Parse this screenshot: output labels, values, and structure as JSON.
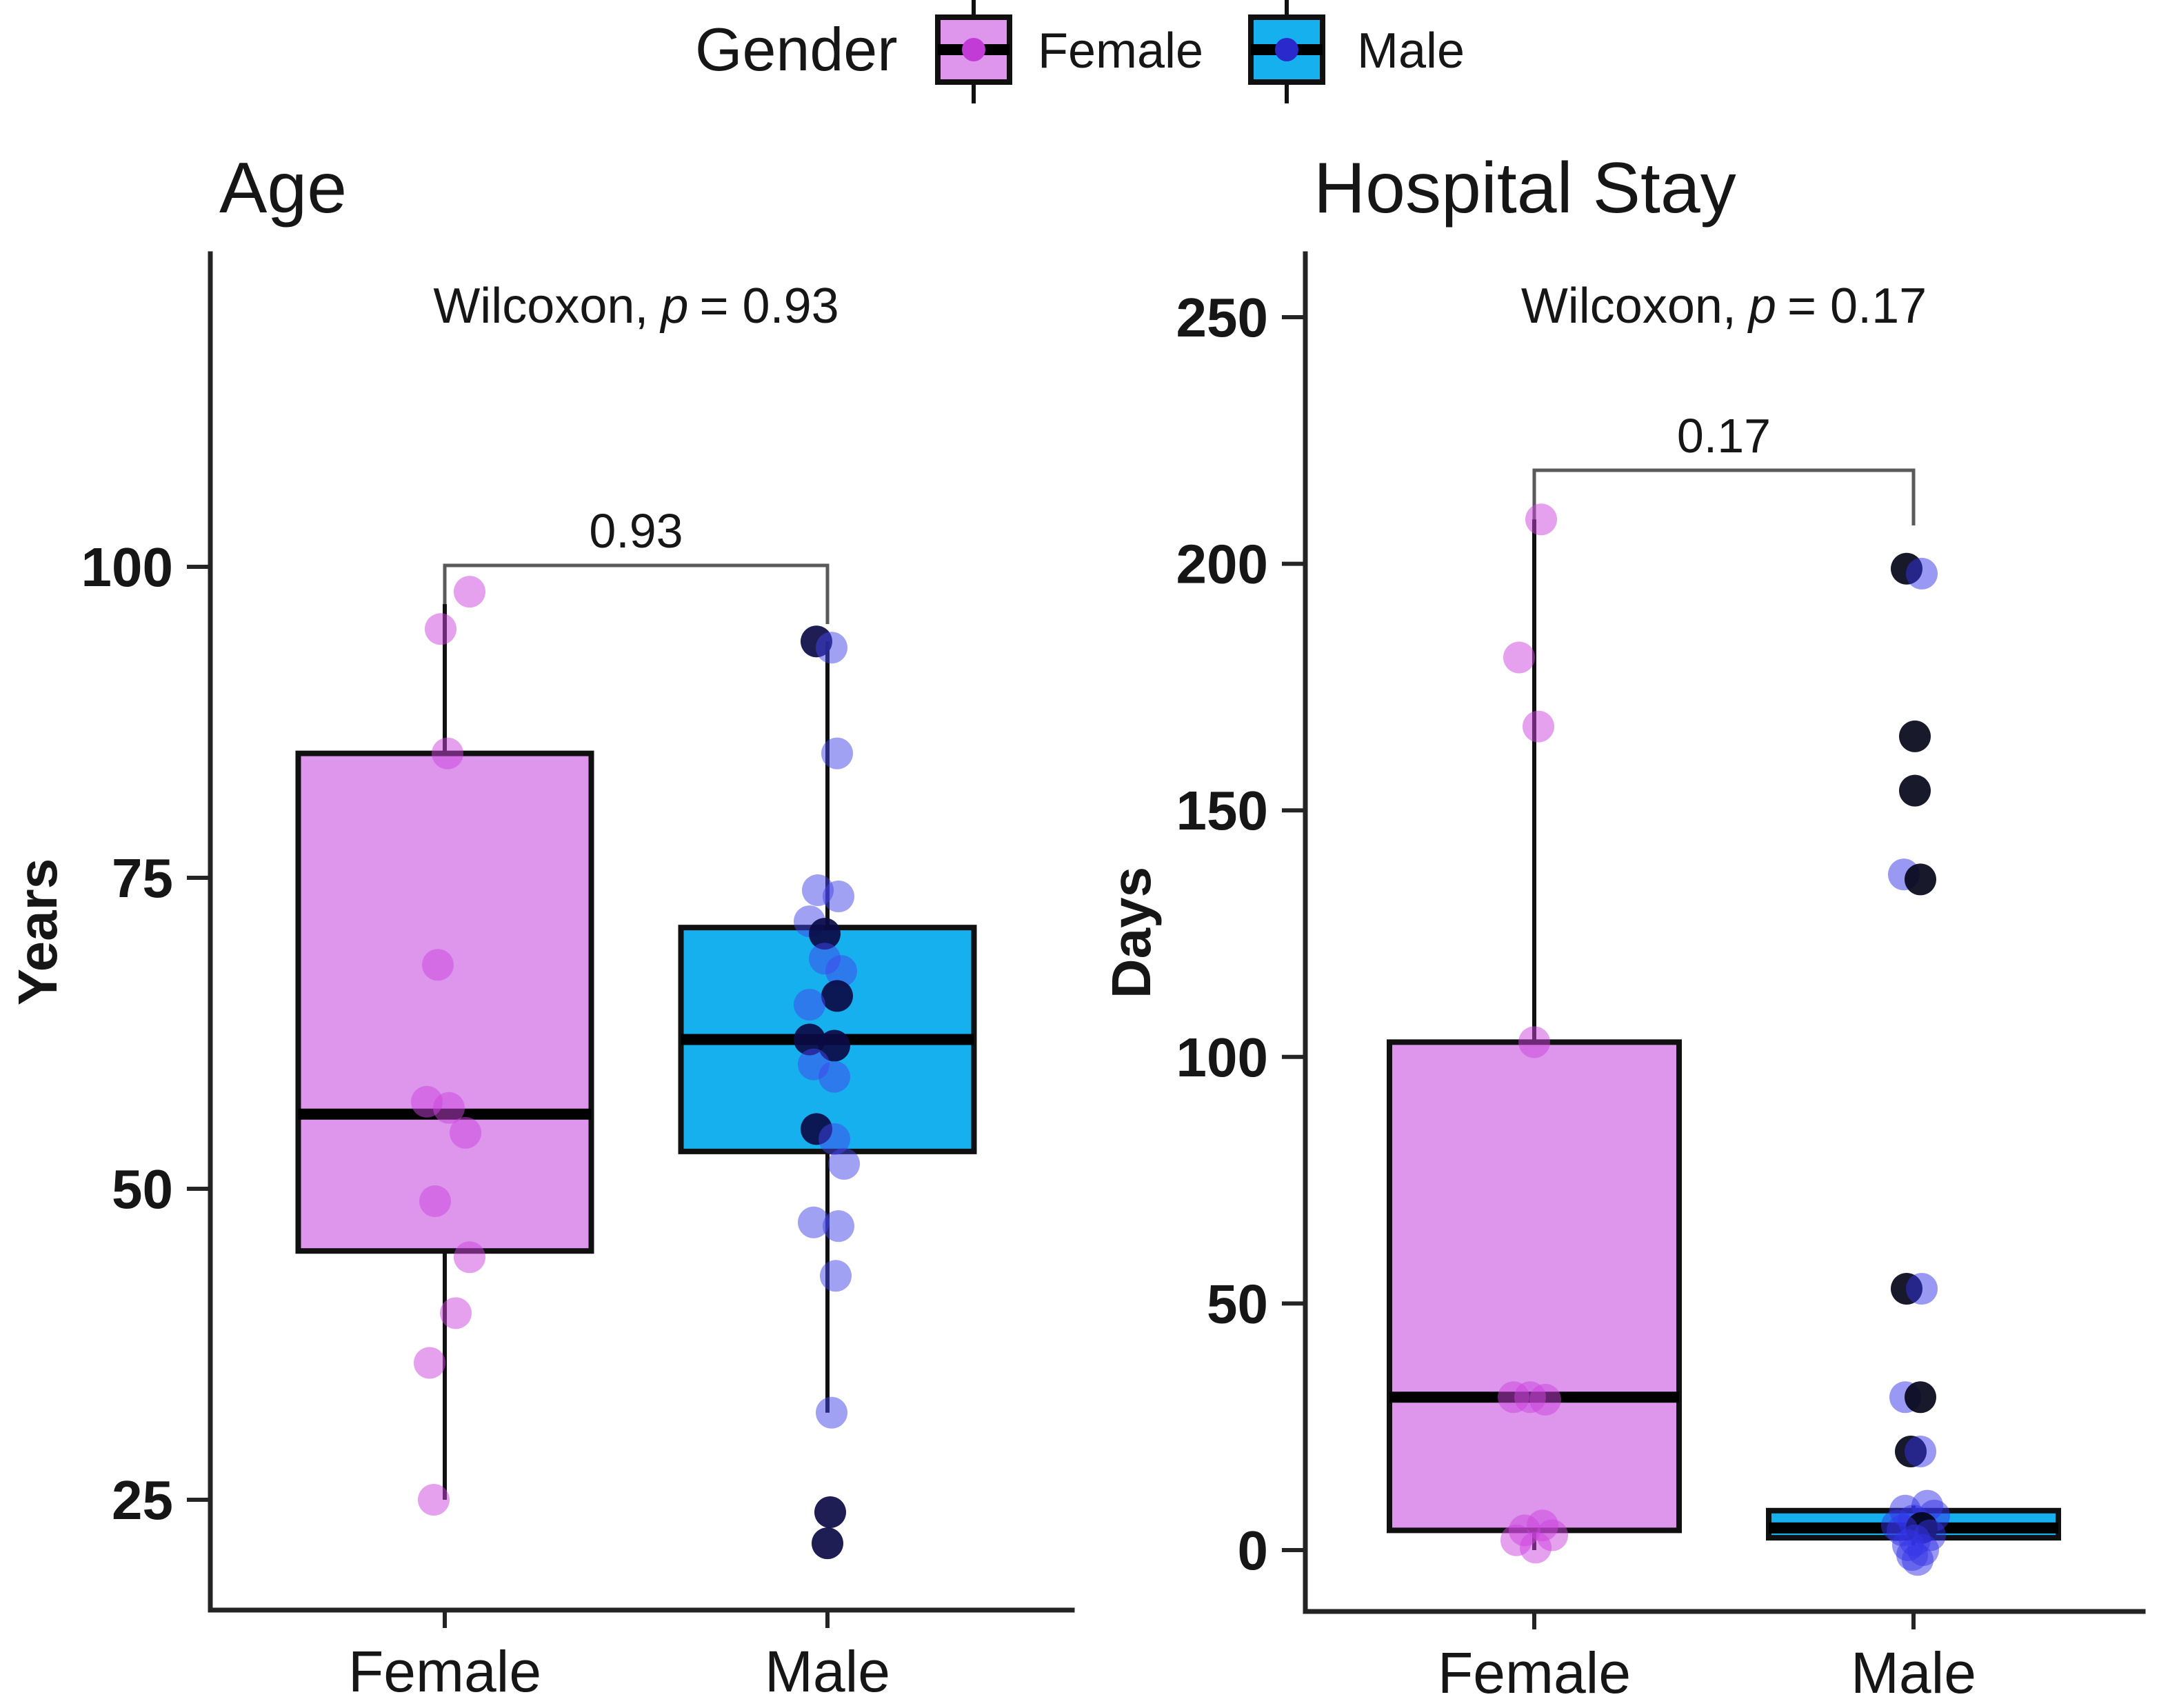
{
  "page": {
    "background": "#ffffff"
  },
  "legend": {
    "title": "Gender",
    "items": [
      {
        "label": "Female",
        "fill": "#DD96EC",
        "point": "#C23BD6"
      },
      {
        "label": "Male",
        "fill": "#16B0EF",
        "point": "#2A2ACC"
      }
    ]
  },
  "chart_data": [
    {
      "type": "box",
      "title": "Age",
      "ylabel": "Years",
      "xlabel": "",
      "legend_position": "top",
      "grid": false,
      "annotation": {
        "pre": "Wilcoxon,",
        "italic": "p",
        "post": "= 0.93"
      },
      "comparison": {
        "label": "0.93"
      },
      "categories": [
        "Female",
        "Male"
      ],
      "yticks": [
        {
          "label": "100",
          "v": 100
        },
        {
          "label": "75",
          "v": 75
        },
        {
          "label": "50",
          "v": 50
        },
        {
          "label": "25",
          "v": 25
        }
      ],
      "ylim": [
        16,
        125
      ],
      "groups": [
        {
          "name": "Female",
          "fill": "#DD96EC",
          "point_color": "#CC44DD",
          "dark_point_color": "#070722",
          "box": {
            "q1": 45,
            "median": 56,
            "q3": 85,
            "whisker_low": 25,
            "whisker_high": 97
          },
          "points": [
            {
              "v": 98,
              "dx": 36
            },
            {
              "v": 95,
              "dx": -6
            },
            {
              "v": 85,
              "dx": 4
            },
            {
              "v": 68,
              "dx": -10
            },
            {
              "v": 57,
              "dx": -26
            },
            {
              "v": 56.5,
              "dx": 6
            },
            {
              "v": 54.5,
              "dx": 30
            },
            {
              "v": 49,
              "dx": -14
            },
            {
              "v": 44.5,
              "dx": 36
            },
            {
              "v": 40,
              "dx": 16
            },
            {
              "v": 36,
              "dx": -22
            },
            {
              "v": 25,
              "dx": -16
            }
          ]
        },
        {
          "name": "Male",
          "fill": "#16B0EF",
          "point_color": "#4343EA",
          "dark_point_color": "#0B0B46",
          "box": {
            "q1": 53,
            "median": 62,
            "q3": 71,
            "whisker_low": 32,
            "whisker_high": 94
          },
          "points": [
            {
              "v": 94,
              "dx": -16,
              "dark": true
            },
            {
              "v": 93.5,
              "dx": 6
            },
            {
              "v": 85,
              "dx": 14
            },
            {
              "v": 74,
              "dx": -14
            },
            {
              "v": 73.5,
              "dx": 16
            },
            {
              "v": 71.5,
              "dx": -26
            },
            {
              "v": 70.5,
              "dx": -4,
              "dark": true
            },
            {
              "v": 68.5,
              "dx": -4
            },
            {
              "v": 67.5,
              "dx": 20
            },
            {
              "v": 65.5,
              "dx": 14,
              "dark": true
            },
            {
              "v": 64.8,
              "dx": -26
            },
            {
              "v": 62,
              "dx": -26,
              "dark": true
            },
            {
              "v": 61.5,
              "dx": 10,
              "dark": true
            },
            {
              "v": 60,
              "dx": -20
            },
            {
              "v": 59,
              "dx": 10
            },
            {
              "v": 54.8,
              "dx": -16,
              "dark": true
            },
            {
              "v": 54,
              "dx": 10
            },
            {
              "v": 52,
              "dx": 24
            },
            {
              "v": 47.3,
              "dx": -20
            },
            {
              "v": 47,
              "dx": 16
            },
            {
              "v": 43,
              "dx": 12
            },
            {
              "v": 32,
              "dx": 6
            },
            {
              "v": 24,
              "dx": 4,
              "dark": true
            },
            {
              "v": 21.5,
              "dx": 0,
              "dark": true
            }
          ]
        }
      ]
    },
    {
      "type": "box",
      "title": "Hospital Stay",
      "ylabel": "Days",
      "xlabel": "",
      "legend_position": "top",
      "grid": false,
      "annotation": {
        "pre": "Wilcoxon,",
        "italic": "p",
        "post": "= 0.17"
      },
      "comparison": {
        "label": "0.17"
      },
      "categories": [
        "Female",
        "Male"
      ],
      "yticks": [
        {
          "label": "250",
          "v": 250
        },
        {
          "label": "200",
          "v": 200
        },
        {
          "label": "150",
          "v": 150
        },
        {
          "label": "100",
          "v": 100
        },
        {
          "label": "50",
          "v": 50
        },
        {
          "label": "0",
          "v": 0
        }
      ],
      "ylim": [
        -12,
        262
      ],
      "groups": [
        {
          "name": "Female",
          "fill": "#DD96EC",
          "point_color": "#CC44DD",
          "dark_point_color": "#070722",
          "box": {
            "q1": 4,
            "median": 31,
            "q3": 103,
            "whisker_low": 0,
            "whisker_high": 209
          },
          "points": [
            {
              "v": 209,
              "dx": 10
            },
            {
              "v": 181,
              "dx": -22
            },
            {
              "v": 167,
              "dx": 6
            },
            {
              "v": 103,
              "dx": 0
            },
            {
              "v": 31,
              "dx": -30
            },
            {
              "v": 31,
              "dx": -6
            },
            {
              "v": 30.5,
              "dx": 16
            },
            {
              "v": 5,
              "dx": 12
            },
            {
              "v": 4,
              "dx": -14
            },
            {
              "v": 3,
              "dx": 26
            },
            {
              "v": 2,
              "dx": -26
            },
            {
              "v": 0.5,
              "dx": 2
            }
          ]
        },
        {
          "name": "Male",
          "fill": "#16B0EF",
          "point_color": "#3434E8",
          "dark_point_color": "#05051A",
          "box": {
            "q1": 2.5,
            "median": 4.5,
            "q3": 8,
            "whisker_low": 1,
            "whisker_high": 9
          },
          "points": [
            {
              "v": 199,
              "dx": -10,
              "dark": true
            },
            {
              "v": 198,
              "dx": 12
            },
            {
              "v": 165,
              "dx": 2,
              "dark": true
            },
            {
              "v": 154,
              "dx": 2,
              "dark": true
            },
            {
              "v": 137,
              "dx": -14
            },
            {
              "v": 136,
              "dx": 10,
              "dark": true
            },
            {
              "v": 53,
              "dx": -10,
              "dark": true
            },
            {
              "v": 53,
              "dx": 12
            },
            {
              "v": 31,
              "dx": -12
            },
            {
              "v": 31,
              "dx": 10,
              "dark": true
            },
            {
              "v": 20,
              "dx": -4,
              "dark": true
            },
            {
              "v": 20,
              "dx": 10
            },
            {
              "v": 9,
              "dx": 20
            },
            {
              "v": 8,
              "dx": -12
            },
            {
              "v": 7,
              "dx": 30
            },
            {
              "v": 6,
              "dx": 0
            },
            {
              "v": 5,
              "dx": -24
            },
            {
              "v": 4.5,
              "dx": 12,
              "dark": true
            },
            {
              "v": 4,
              "dx": -16
            },
            {
              "v": 3,
              "dx": 24
            },
            {
              "v": 2,
              "dx": 2
            },
            {
              "v": 1,
              "dx": -8
            },
            {
              "v": 0,
              "dx": 14
            },
            {
              "v": -1,
              "dx": -2
            },
            {
              "v": -2,
              "dx": 6
            }
          ]
        }
      ]
    }
  ]
}
